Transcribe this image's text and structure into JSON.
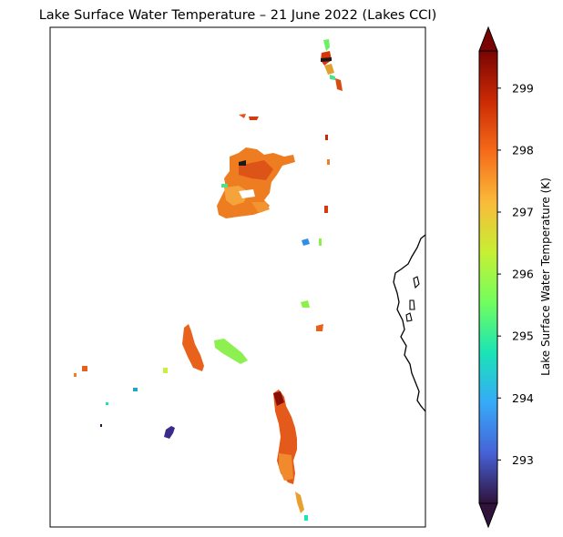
{
  "title": "Lake Surface Water Temperature – 21 June 2022 (Lakes CCI)",
  "colorbar": {
    "label": "Lake Surface Water Temperature (K)",
    "vmin": 292.3,
    "vmax": 299.6,
    "ticks": [
      "293",
      "294",
      "295",
      "296",
      "297",
      "298",
      "299"
    ],
    "extend": "both",
    "colormap": "turbo",
    "color_stops": [
      "#30123b",
      "#4662d7",
      "#36aaf9",
      "#1ae4b6",
      "#72fe5e",
      "#c7ef34",
      "#faba39",
      "#f66b19",
      "#cb2a04",
      "#7a0403"
    ]
  },
  "map": {
    "coastline_color": "#000000",
    "frame_color": "#000000"
  }
}
